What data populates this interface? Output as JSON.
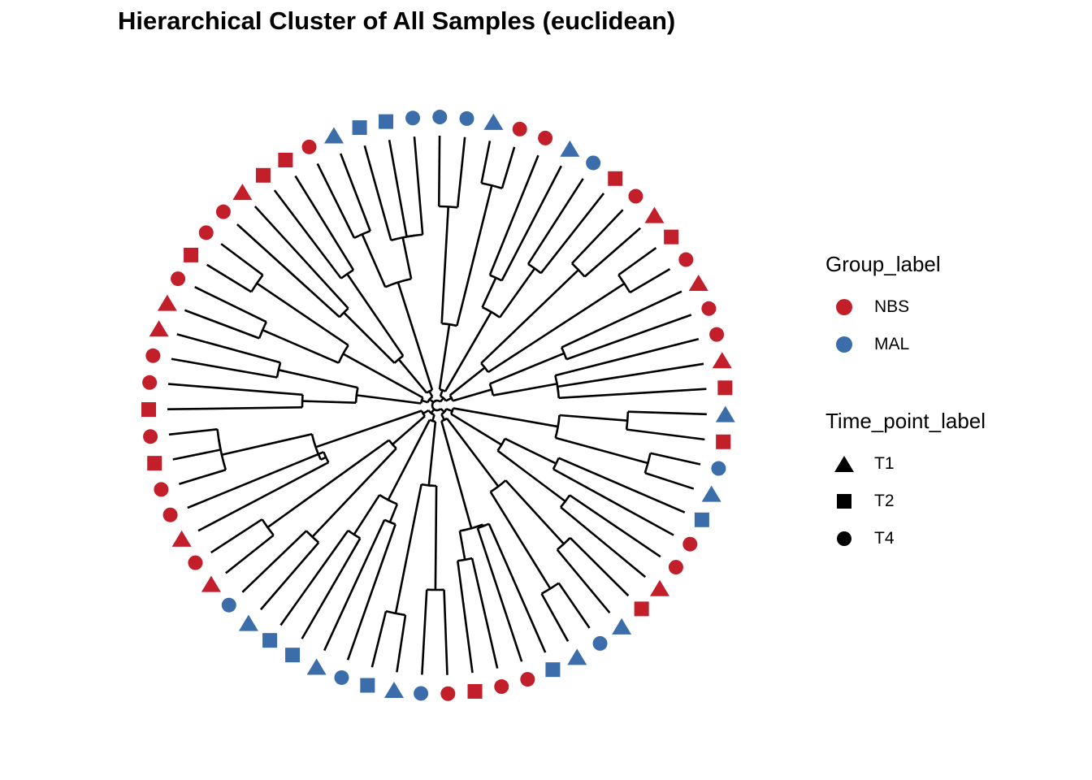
{
  "chart_data": {
    "type": "dendrogram",
    "title": "Hierarchical Cluster of All Samples (euclidean)",
    "layout": "circular",
    "colors": {
      "NBS": "#C21F2B",
      "MAL": "#3A6DAA",
      "branch": "#000000"
    },
    "legend": {
      "group": {
        "title": "Group_label",
        "items": [
          {
            "label": "NBS",
            "color": "#C21F2B"
          },
          {
            "label": "MAL",
            "color": "#3A6DAA"
          }
        ]
      },
      "time": {
        "title": "Time_point_label",
        "items": [
          {
            "label": "T1",
            "shape": "triangle"
          },
          {
            "label": "T2",
            "shape": "square"
          },
          {
            "label": "T4",
            "shape": "circle"
          }
        ]
      }
    },
    "leaves": [
      {
        "group": "NBS",
        "time": "T2"
      },
      {
        "group": "NBS",
        "time": "T1"
      },
      {
        "group": "NBS",
        "time": "T4"
      },
      {
        "group": "NBS",
        "time": "T4"
      },
      {
        "group": "NBS",
        "time": "T1"
      },
      {
        "group": "NBS",
        "time": "T4"
      },
      {
        "group": "NBS",
        "time": "T2"
      },
      {
        "group": "NBS",
        "time": "T1"
      },
      {
        "group": "NBS",
        "time": "T4"
      },
      {
        "group": "NBS",
        "time": "T2"
      },
      {
        "group": "MAL",
        "time": "T4"
      },
      {
        "group": "MAL",
        "time": "T1"
      },
      {
        "group": "NBS",
        "time": "T4"
      },
      {
        "group": "NBS",
        "time": "T4"
      },
      {
        "group": "MAL",
        "time": "T1"
      },
      {
        "group": "MAL",
        "time": "T4"
      },
      {
        "group": "MAL",
        "time": "T4"
      },
      {
        "group": "MAL",
        "time": "T4"
      },
      {
        "group": "MAL",
        "time": "T2"
      },
      {
        "group": "MAL",
        "time": "T2"
      },
      {
        "group": "MAL",
        "time": "T1"
      },
      {
        "group": "NBS",
        "time": "T4"
      },
      {
        "group": "NBS",
        "time": "T2"
      },
      {
        "group": "NBS",
        "time": "T2"
      },
      {
        "group": "NBS",
        "time": "T1"
      },
      {
        "group": "NBS",
        "time": "T4"
      },
      {
        "group": "NBS",
        "time": "T4"
      },
      {
        "group": "NBS",
        "time": "T2"
      },
      {
        "group": "NBS",
        "time": "T4"
      },
      {
        "group": "NBS",
        "time": "T1"
      },
      {
        "group": "NBS",
        "time": "T1"
      },
      {
        "group": "NBS",
        "time": "T4"
      },
      {
        "group": "NBS",
        "time": "T4"
      },
      {
        "group": "NBS",
        "time": "T2"
      },
      {
        "group": "NBS",
        "time": "T4"
      },
      {
        "group": "NBS",
        "time": "T2"
      },
      {
        "group": "NBS",
        "time": "T4"
      },
      {
        "group": "NBS",
        "time": "T4"
      },
      {
        "group": "NBS",
        "time": "T1"
      },
      {
        "group": "NBS",
        "time": "T4"
      },
      {
        "group": "NBS",
        "time": "T1"
      },
      {
        "group": "MAL",
        "time": "T4"
      },
      {
        "group": "MAL",
        "time": "T1"
      },
      {
        "group": "MAL",
        "time": "T2"
      },
      {
        "group": "MAL",
        "time": "T2"
      },
      {
        "group": "MAL",
        "time": "T1"
      },
      {
        "group": "MAL",
        "time": "T4"
      },
      {
        "group": "MAL",
        "time": "T2"
      },
      {
        "group": "MAL",
        "time": "T1"
      },
      {
        "group": "MAL",
        "time": "T4"
      },
      {
        "group": "NBS",
        "time": "T4"
      },
      {
        "group": "NBS",
        "time": "T2"
      },
      {
        "group": "NBS",
        "time": "T4"
      },
      {
        "group": "NBS",
        "time": "T4"
      },
      {
        "group": "MAL",
        "time": "T2"
      },
      {
        "group": "MAL",
        "time": "T1"
      },
      {
        "group": "MAL",
        "time": "T4"
      },
      {
        "group": "MAL",
        "time": "T1"
      },
      {
        "group": "NBS",
        "time": "T2"
      },
      {
        "group": "NBS",
        "time": "T1"
      },
      {
        "group": "NBS",
        "time": "T4"
      },
      {
        "group": "NBS",
        "time": "T4"
      },
      {
        "group": "MAL",
        "time": "T2"
      },
      {
        "group": "MAL",
        "time": "T1"
      },
      {
        "group": "MAL",
        "time": "T4"
      },
      {
        "group": "NBS",
        "time": "T2"
      },
      {
        "group": "MAL",
        "time": "T1"
      }
    ]
  }
}
